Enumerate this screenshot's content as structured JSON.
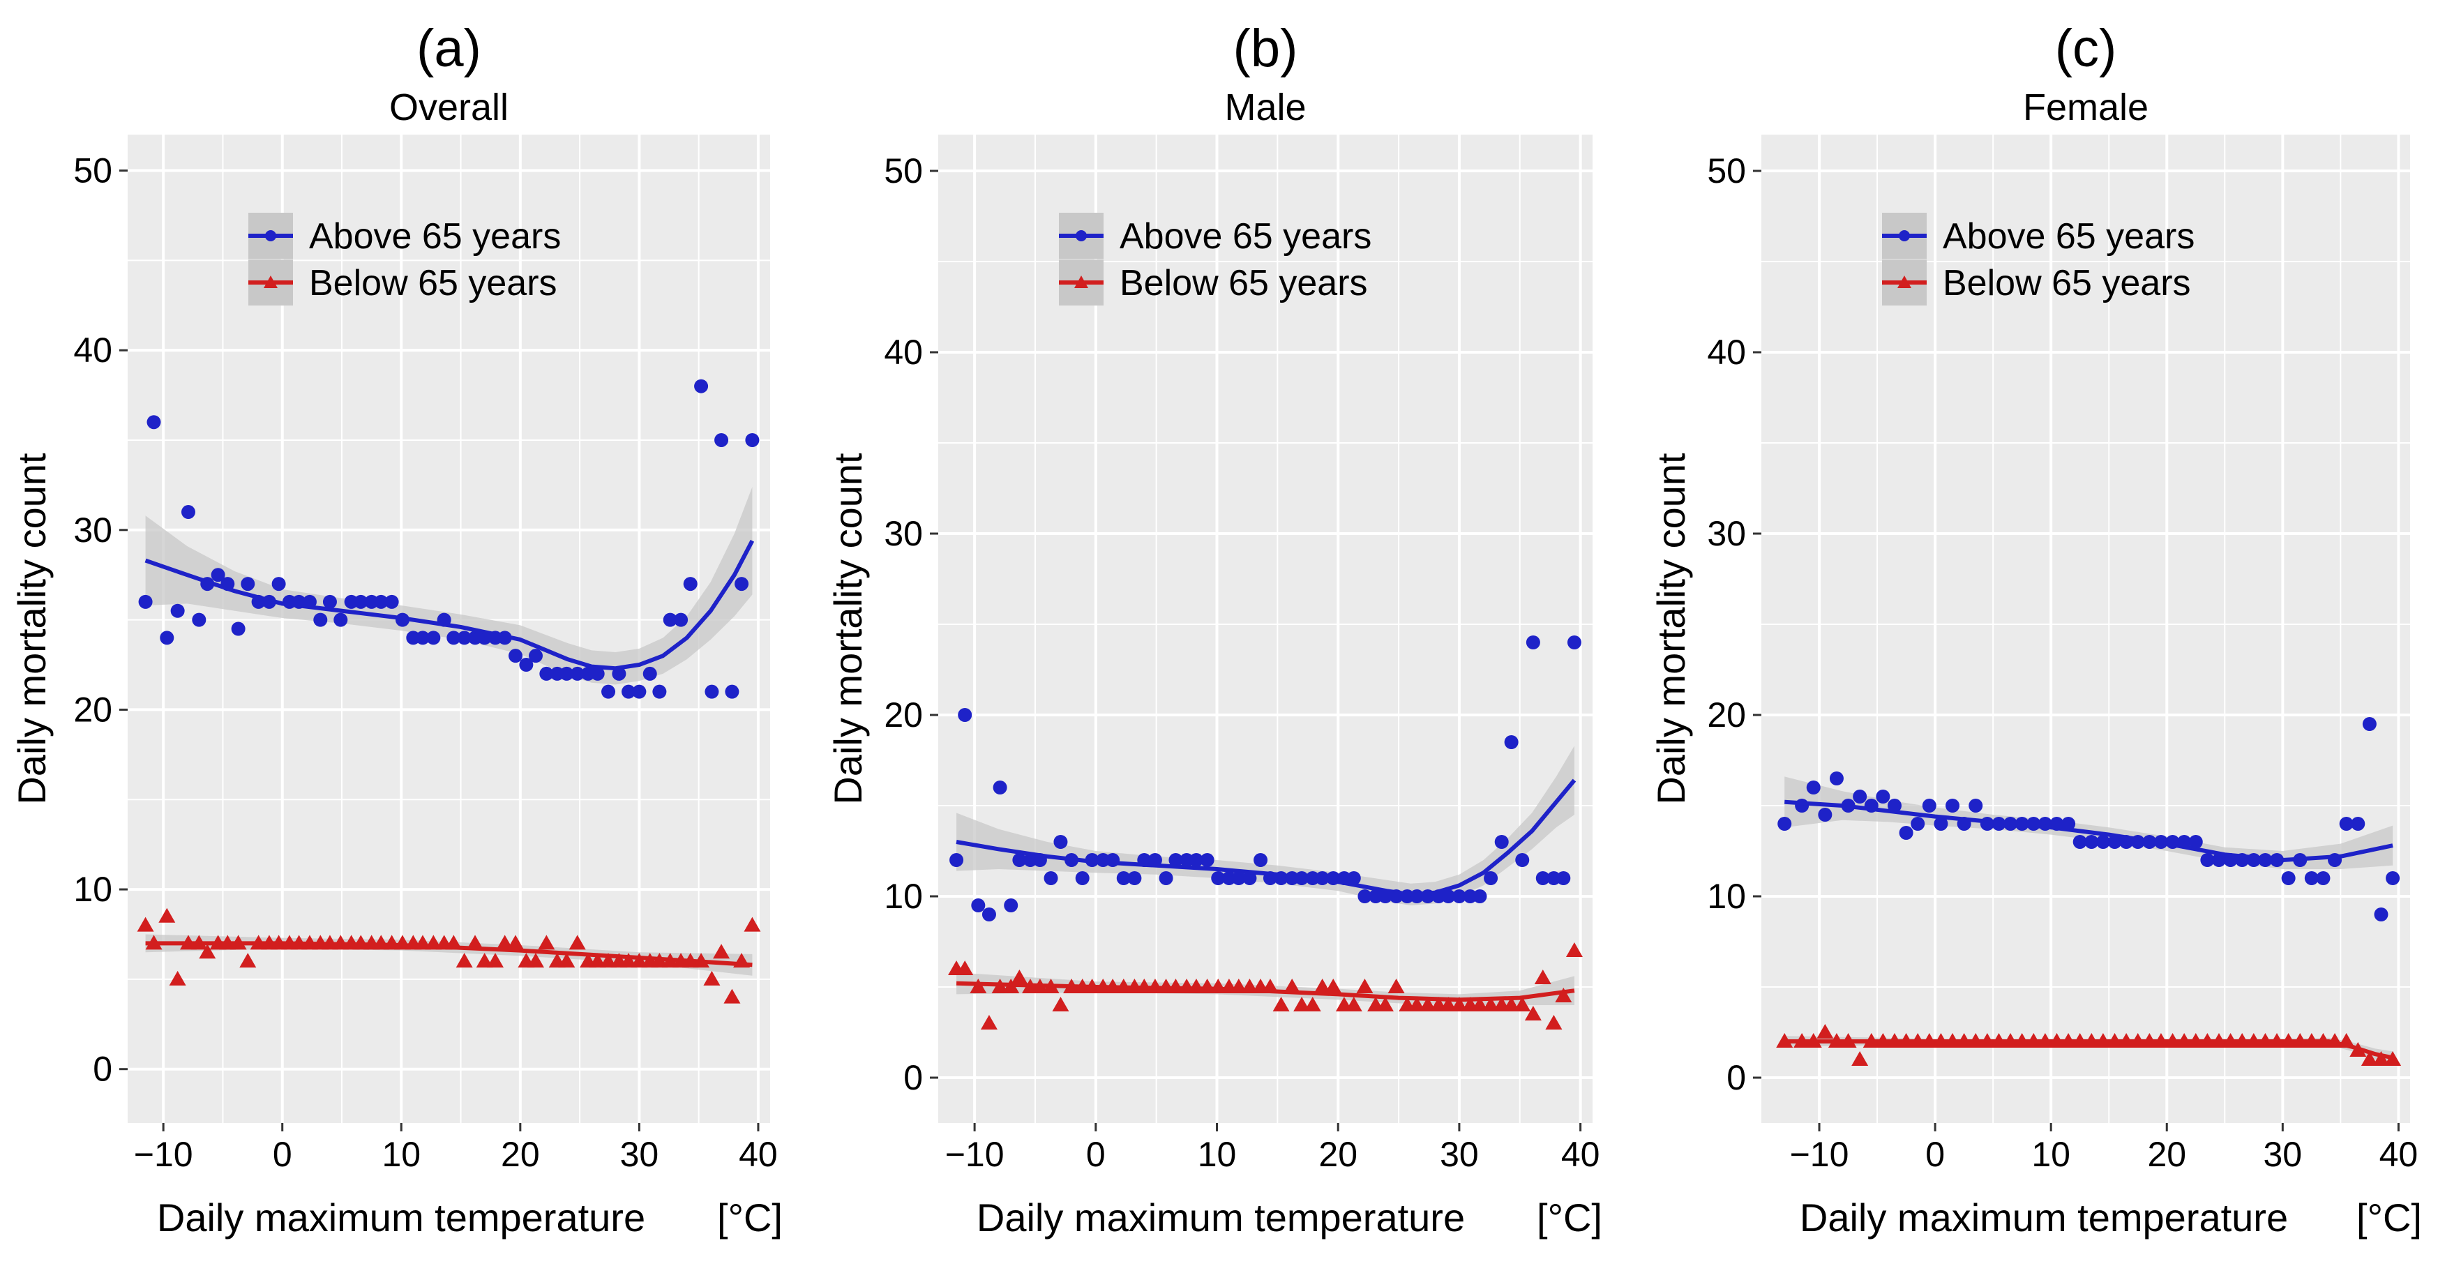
{
  "colors": {
    "above": "#1e22c8",
    "below": "#d21e1e",
    "band": "#c8c8c8",
    "panel_bg": "#ebebeb",
    "grid": "#ffffff"
  },
  "chart_data": [
    {
      "type": "scatter",
      "panel_label": "(a)",
      "title": "Overall",
      "xlabel": "Daily maximum temperature",
      "xunit": "[°C]",
      "ylabel": "Daily mortality count",
      "xlim": [
        -13,
        41
      ],
      "ylim": [
        -3,
        52
      ],
      "xticks": [
        -10,
        0,
        10,
        20,
        30,
        40
      ],
      "xtick_labels": [
        "−10",
        "0",
        "10",
        "20",
        "30",
        "40"
      ],
      "yticks": [
        0,
        10,
        20,
        30,
        40,
        50
      ],
      "ytick_labels": [
        "0",
        "10",
        "20",
        "30",
        "40",
        "50"
      ],
      "legend": [
        "Above 65 years",
        "Below 65 years"
      ],
      "legend_position": "top-center",
      "series": [
        {
          "name": "Above 65 years",
          "color_key": "above",
          "marker": "circle",
          "x": [
            -11.5,
            -10.8,
            -9.7,
            -8.8,
            -7.9,
            -7,
            -6.3,
            -5.4,
            -4.6,
            -3.7,
            -2.9,
            -2,
            -1.1,
            -0.3,
            0.6,
            1.4,
            2.3,
            3.2,
            4,
            4.9,
            5.8,
            6.6,
            7.5,
            8.3,
            9.2,
            10.1,
            11,
            11.8,
            12.7,
            13.6,
            14.4,
            15.3,
            16.2,
            17,
            17.9,
            18.7,
            19.6,
            20.5,
            21.3,
            22.2,
            23.1,
            23.9,
            24.8,
            25.7,
            26.5,
            27.4,
            28.3,
            29.1,
            30,
            30.9,
            31.7,
            32.6,
            33.5,
            34.3,
            35.2,
            36.1,
            36.9,
            37.8,
            38.6,
            39.5
          ],
          "y": [
            26,
            36,
            24,
            25.5,
            31,
            25,
            27,
            27.5,
            27,
            24.5,
            27,
            26,
            26,
            27,
            26,
            26,
            26,
            25,
            26,
            25,
            26,
            26,
            26,
            26,
            26,
            25,
            24,
            24,
            24,
            25,
            24,
            24,
            24,
            24,
            24,
            24,
            23,
            22.5,
            23,
            22,
            22,
            22,
            22,
            22,
            22,
            21,
            22,
            21,
            21,
            22,
            21,
            25,
            25,
            27,
            38,
            21,
            35,
            21,
            27,
            35
          ],
          "fit_x": [
            -11.5,
            -8,
            -4,
            0,
            5,
            10,
            15,
            20,
            24,
            26,
            28,
            30,
            32,
            34,
            36,
            38,
            39.5
          ],
          "fit_y": [
            28.3,
            27.5,
            26.6,
            25.9,
            25.5,
            25.1,
            24.6,
            23.9,
            22.8,
            22.4,
            22.3,
            22.5,
            23,
            24,
            25.5,
            27.5,
            29.4
          ],
          "band_halfwidth": [
            2.5,
            1.6,
            1.1,
            0.8,
            0.7,
            0.7,
            0.7,
            0.8,
            0.9,
            0.9,
            0.9,
            0.9,
            1.0,
            1.2,
            1.6,
            2.3,
            3.0
          ]
        },
        {
          "name": "Below 65 years",
          "color_key": "below",
          "marker": "triangle",
          "x": [
            -11.5,
            -10.8,
            -9.7,
            -8.8,
            -7.9,
            -7,
            -6.3,
            -5.4,
            -4.6,
            -3.7,
            -2.9,
            -2,
            -1.1,
            -0.3,
            0.6,
            1.4,
            2.3,
            3.2,
            4,
            4.9,
            5.8,
            6.6,
            7.5,
            8.3,
            9.2,
            10.1,
            11,
            11.8,
            12.7,
            13.6,
            14.4,
            15.3,
            16.2,
            17,
            17.9,
            18.7,
            19.6,
            20.5,
            21.3,
            22.2,
            23.1,
            23.9,
            24.8,
            25.7,
            26.5,
            27.4,
            28.3,
            29.1,
            30,
            30.9,
            31.7,
            32.6,
            33.5,
            34.3,
            35.2,
            36.1,
            36.9,
            37.8,
            38.6,
            39.5
          ],
          "y": [
            8,
            7,
            8.5,
            5,
            7,
            7,
            6.5,
            7,
            7,
            7,
            6,
            7,
            7,
            7,
            7,
            7,
            7,
            7,
            7,
            7,
            7,
            7,
            7,
            7,
            7,
            7,
            7,
            7,
            7,
            7,
            7,
            6,
            7,
            6,
            6,
            7,
            7,
            6,
            6,
            7,
            6,
            6,
            7,
            6,
            6,
            6,
            6,
            6,
            6,
            6,
            6,
            6,
            6,
            6,
            6,
            5,
            6.5,
            4,
            6,
            8
          ],
          "fit_x": [
            -11.5,
            0,
            10,
            20,
            30,
            39.5
          ],
          "fit_y": [
            7.0,
            7.0,
            6.9,
            6.6,
            6.2,
            5.8
          ],
          "band_halfwidth": [
            0.5,
            0.3,
            0.3,
            0.3,
            0.3,
            0.6
          ]
        }
      ]
    },
    {
      "type": "scatter",
      "panel_label": "(b)",
      "title": "Male",
      "xlabel": "Daily maximum temperature",
      "xunit": "[°C]",
      "ylabel": "Daily mortality count",
      "xlim": [
        -13,
        41
      ],
      "ylim": [
        -2.5,
        52
      ],
      "xticks": [
        -10,
        0,
        10,
        20,
        30,
        40
      ],
      "xtick_labels": [
        "−10",
        "0",
        "10",
        "20",
        "30",
        "40"
      ],
      "yticks": [
        0,
        10,
        20,
        30,
        40,
        50
      ],
      "ytick_labels": [
        "0",
        "10",
        "20",
        "30",
        "40",
        "50"
      ],
      "legend": [
        "Above 65 years",
        "Below 65 years"
      ],
      "legend_position": "top-center",
      "series": [
        {
          "name": "Above 65 years",
          "color_key": "above",
          "marker": "circle",
          "x": [
            -11.5,
            -10.8,
            -9.7,
            -8.8,
            -7.9,
            -7,
            -6.3,
            -5.4,
            -4.6,
            -3.7,
            -2.9,
            -2,
            -1.1,
            -0.3,
            0.6,
            1.4,
            2.3,
            3.2,
            4,
            4.9,
            5.8,
            6.6,
            7.5,
            8.3,
            9.2,
            10.1,
            11,
            11.8,
            12.7,
            13.6,
            14.4,
            15.3,
            16.2,
            17,
            17.9,
            18.7,
            19.6,
            20.5,
            21.3,
            22.2,
            23.1,
            23.9,
            24.8,
            25.7,
            26.5,
            27.4,
            28.3,
            29.1,
            30,
            30.9,
            31.7,
            32.6,
            33.5,
            34.3,
            35.2,
            36.1,
            36.9,
            37.8,
            38.6,
            39.5
          ],
          "y": [
            12,
            20,
            9.5,
            9,
            16,
            9.5,
            12,
            12,
            12,
            11,
            13,
            12,
            11,
            12,
            12,
            12,
            11,
            11,
            12,
            12,
            11,
            12,
            12,
            12,
            12,
            11,
            11,
            11,
            11,
            12,
            11,
            11,
            11,
            11,
            11,
            11,
            11,
            11,
            11,
            10,
            10,
            10,
            10,
            10,
            10,
            10,
            10,
            10,
            10,
            10,
            10,
            11,
            13,
            18.5,
            12,
            24,
            11,
            11,
            11,
            24
          ],
          "fit_x": [
            -11.5,
            -8,
            -4,
            0,
            5,
            10,
            15,
            20,
            24,
            26,
            28,
            30,
            32,
            34,
            36,
            38,
            39.5
          ],
          "fit_y": [
            13.0,
            12.6,
            12.2,
            11.9,
            11.7,
            11.5,
            11.2,
            10.8,
            10.3,
            10.1,
            10.2,
            10.6,
            11.3,
            12.4,
            13.6,
            15.2,
            16.4
          ],
          "band_halfwidth": [
            1.6,
            1.1,
            0.8,
            0.6,
            0.5,
            0.5,
            0.5,
            0.5,
            0.6,
            0.6,
            0.6,
            0.6,
            0.7,
            0.8,
            1.0,
            1.4,
            1.9
          ]
        },
        {
          "name": "Below 65 years",
          "color_key": "below",
          "marker": "triangle",
          "x": [
            -11.5,
            -10.8,
            -9.7,
            -8.8,
            -7.9,
            -7,
            -6.3,
            -5.4,
            -4.6,
            -3.7,
            -2.9,
            -2,
            -1.1,
            -0.3,
            0.6,
            1.4,
            2.3,
            3.2,
            4,
            4.9,
            5.8,
            6.6,
            7.5,
            8.3,
            9.2,
            10.1,
            11,
            11.8,
            12.7,
            13.6,
            14.4,
            15.3,
            16.2,
            17,
            17.9,
            18.7,
            19.6,
            20.5,
            21.3,
            22.2,
            23.1,
            23.9,
            24.8,
            25.7,
            26.5,
            27.4,
            28.3,
            29.1,
            30,
            30.9,
            31.7,
            32.6,
            33.5,
            34.3,
            35.2,
            36.1,
            36.9,
            37.8,
            38.6,
            39.5
          ],
          "y": [
            6,
            6,
            5,
            3,
            5,
            5,
            5.5,
            5,
            5,
            5,
            4,
            5,
            5,
            5,
            5,
            5,
            5,
            5,
            5,
            5,
            5,
            5,
            5,
            5,
            5,
            5,
            5,
            5,
            5,
            5,
            5,
            4,
            5,
            4,
            4,
            5,
            5,
            4,
            4,
            5,
            4,
            4,
            5,
            4,
            4,
            4,
            4,
            4,
            4,
            4,
            4,
            4,
            4,
            4,
            4,
            3.5,
            5.5,
            3,
            4.5,
            7
          ],
          "fit_x": [
            -11.5,
            0,
            10,
            20,
            25,
            30,
            35,
            39.5
          ],
          "fit_y": [
            5.2,
            5.0,
            4.9,
            4.6,
            4.4,
            4.3,
            4.4,
            4.8
          ],
          "band_halfwidth": [
            0.6,
            0.3,
            0.3,
            0.3,
            0.3,
            0.3,
            0.4,
            0.8
          ]
        }
      ]
    },
    {
      "type": "scatter",
      "panel_label": "(c)",
      "title": "Female",
      "xlabel": "Daily maximum temperature",
      "xunit": "[°C]",
      "ylabel": "Daily mortality count",
      "xlim": [
        -15,
        41
      ],
      "ylim": [
        -2.5,
        52
      ],
      "xticks": [
        -10,
        0,
        10,
        20,
        30,
        40
      ],
      "xtick_labels": [
        "−10",
        "0",
        "10",
        "20",
        "30",
        "40"
      ],
      "yticks": [
        0,
        10,
        20,
        30,
        40,
        50
      ],
      "ytick_labels": [
        "0",
        "10",
        "20",
        "30",
        "40",
        "50"
      ],
      "legend": [
        "Above 65 years",
        "Below 65 years"
      ],
      "legend_position": "top-center",
      "series": [
        {
          "name": "Above 65 years",
          "color_key": "above",
          "marker": "circle",
          "x": [
            -13,
            -11.5,
            -10.5,
            -9.5,
            -8.5,
            -7.5,
            -6.5,
            -5.5,
            -4.5,
            -3.5,
            -2.5,
            -1.5,
            -0.5,
            0.5,
            1.5,
            2.5,
            3.5,
            4.5,
            5.5,
            6.5,
            7.5,
            8.5,
            9.5,
            10.5,
            11.5,
            12.5,
            13.5,
            14.5,
            15.5,
            16.5,
            17.5,
            18.5,
            19.5,
            20.5,
            21.5,
            22.5,
            23.5,
            24.5,
            25.5,
            26.5,
            27.5,
            28.5,
            29.5,
            30.5,
            31.5,
            32.5,
            33.5,
            34.5,
            35.5,
            36.5,
            37.5,
            38.5,
            39.5
          ],
          "y": [
            14,
            15,
            16,
            14.5,
            16.5,
            15,
            15.5,
            15,
            15.5,
            15,
            13.5,
            14,
            15,
            14,
            15,
            14,
            15,
            14,
            14,
            14,
            14,
            14,
            14,
            14,
            14,
            13,
            13,
            13,
            13,
            13,
            13,
            13,
            13,
            13,
            13,
            13,
            12,
            12,
            12,
            12,
            12,
            12,
            12,
            11,
            12,
            11,
            11,
            12,
            14,
            14,
            19.5,
            9,
            11
          ],
          "fit_x": [
            -13,
            -8,
            -4,
            0,
            5,
            10,
            15,
            20,
            25,
            30,
            35,
            39.5
          ],
          "fit_y": [
            15.2,
            15.0,
            14.7,
            14.4,
            14.1,
            13.8,
            13.4,
            12.9,
            12.3,
            12.0,
            12.2,
            12.8
          ],
          "band_halfwidth": [
            1.4,
            0.8,
            0.6,
            0.5,
            0.4,
            0.4,
            0.4,
            0.4,
            0.4,
            0.5,
            0.7,
            1.1
          ]
        },
        {
          "name": "Below 65 years",
          "color_key": "below",
          "marker": "triangle",
          "x": [
            -13,
            -11.5,
            -10.5,
            -9.5,
            -8.5,
            -7.5,
            -6.5,
            -5.5,
            -4.5,
            -3.5,
            -2.5,
            -1.5,
            -0.5,
            0.5,
            1.5,
            2.5,
            3.5,
            4.5,
            5.5,
            6.5,
            7.5,
            8.5,
            9.5,
            10.5,
            11.5,
            12.5,
            13.5,
            14.5,
            15.5,
            16.5,
            17.5,
            18.5,
            19.5,
            20.5,
            21.5,
            22.5,
            23.5,
            24.5,
            25.5,
            26.5,
            27.5,
            28.5,
            29.5,
            30.5,
            31.5,
            32.5,
            33.5,
            34.5,
            35.5,
            36.5,
            37.5,
            38.5,
            39.5
          ],
          "y": [
            2,
            2,
            2,
            2.5,
            2,
            2,
            1,
            2,
            2,
            2,
            2,
            2,
            2,
            2,
            2,
            2,
            2,
            2,
            2,
            2,
            2,
            2,
            2,
            2,
            2,
            2,
            2,
            2,
            2,
            2,
            2,
            2,
            2,
            2,
            2,
            2,
            2,
            2,
            2,
            2,
            2,
            2,
            2,
            2,
            2,
            2,
            2,
            2,
            2,
            1.5,
            1,
            1,
            1
          ],
          "fit_x": [
            -13,
            0,
            10,
            20,
            30,
            34,
            36,
            38,
            39.5
          ],
          "fit_y": [
            2.0,
            2.0,
            2.0,
            2.0,
            2.0,
            2.0,
            1.7,
            1.3,
            1.1
          ],
          "band_halfwidth": [
            0.3,
            0.15,
            0.15,
            0.15,
            0.15,
            0.2,
            0.25,
            0.3,
            0.35
          ]
        }
      ]
    }
  ]
}
